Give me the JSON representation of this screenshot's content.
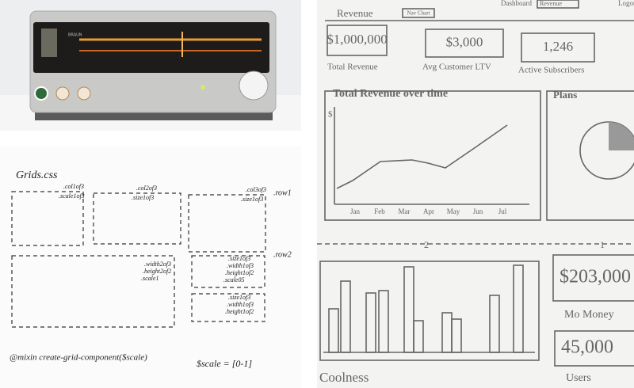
{
  "radio": {
    "brand": "BRAUN"
  },
  "grid_sketch": {
    "title": "Grids.css",
    "row1": {
      "label": ".row1",
      "boxes": [
        [
          ".col1of3",
          ".scale1of3"
        ],
        [
          ".col2of3",
          ".size1of3"
        ],
        [
          ".col3of3",
          ".size1of3"
        ]
      ]
    },
    "row2": {
      "label": ".row2",
      "big_box": [
        ".width2of3",
        ".height2of2",
        ".scale1"
      ],
      "small_box_1": [
        ".size1of3",
        ".width1of3",
        ".height1of2",
        ".scale05"
      ],
      "small_box_2": [
        ".size1of3",
        ".width1of3",
        ".height1of2"
      ]
    },
    "mixin": "@mixin  create-grid-component($scale)",
    "scale_note": "$scale = [0-1]"
  },
  "dashboard": {
    "header": {
      "title": "Revenue",
      "button": "Nav Chart",
      "nav": "Dashboard",
      "select": "Revenue",
      "logout": "Logout"
    },
    "kpis": [
      {
        "value": "$1,000,000",
        "label": "Total Revenue"
      },
      {
        "value": "$3,000",
        "label": "Avg Customer LTV"
      },
      {
        "value": "1,246",
        "label": "Active Subscribers"
      }
    ],
    "line_panel": {
      "title": "Total Revenue over time",
      "y_symbol": "$",
      "months": [
        "Jan",
        "Feb",
        "Mar",
        "Apr",
        "May",
        "Jun",
        "Jul"
      ]
    },
    "plans_panel": {
      "title": "Plans"
    },
    "divider": {
      "left": "2",
      "right": "1"
    },
    "stats": [
      {
        "value": "$203,000",
        "label": "Mo Money"
      },
      {
        "value": "45,000",
        "label": "Users"
      }
    ],
    "footer": "Coolness"
  }
}
